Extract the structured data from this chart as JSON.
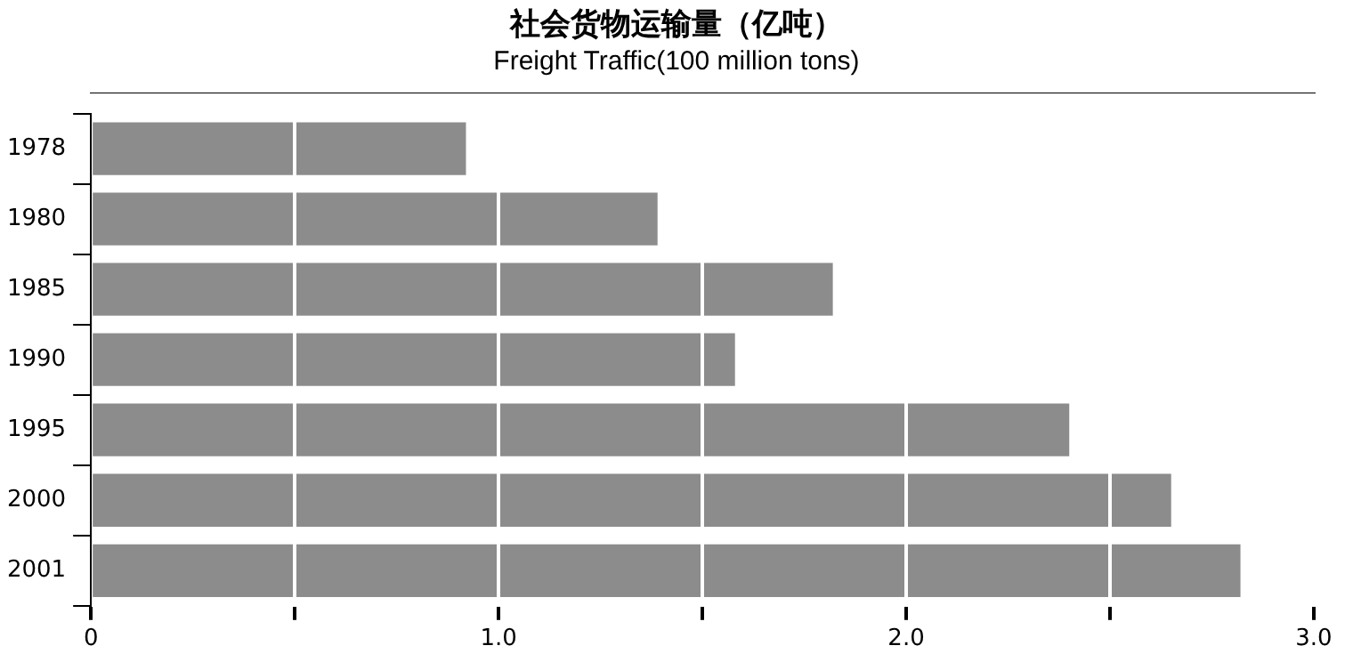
{
  "chart_data": {
    "type": "bar",
    "orientation": "horizontal",
    "title": "社会货物运输量（亿吨）",
    "subtitle": "Freight Traffic(100 million tons)",
    "categories": [
      "1978",
      "1980",
      "1985",
      "1990",
      "1995",
      "2000",
      "2001"
    ],
    "values": [
      0.92,
      1.39,
      1.82,
      1.58,
      2.4,
      2.65,
      2.82
    ],
    "color": "#8c8c8c",
    "xlim": [
      0,
      3
    ],
    "xticks": [
      0,
      {
        "value": 0.5,
        "label": null
      },
      {
        "value": 1,
        "label": "1.0"
      },
      {
        "value": 1.5,
        "label": null
      },
      {
        "value": 2,
        "label": "2.0"
      },
      {
        "value": 2.5,
        "label": null
      },
      {
        "value": 3,
        "label": "3.0"
      }
    ],
    "grid": "x"
  }
}
